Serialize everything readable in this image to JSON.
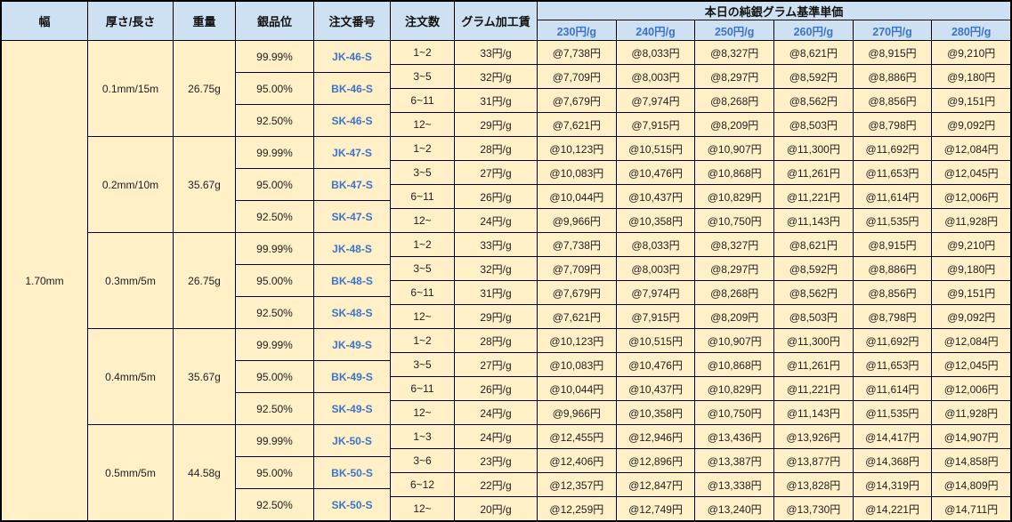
{
  "colors": {
    "header_bg": "#cee1f2",
    "body_bg": "#fff0c8",
    "grid": "#000000",
    "tick_blue": "#3c74cc",
    "code_blue": "#3c74cc"
  },
  "header": {
    "columns": [
      "幅",
      "厚さ/長さ",
      "重量",
      "銀品位",
      "注文番号",
      "注文数",
      "グラム加工賃"
    ],
    "price_group": "本日の純銀グラム基準単価",
    "price_ticks": [
      "230円/g",
      "240円/g",
      "250円/g",
      "260円/g",
      "270円/g",
      "280円/g"
    ]
  },
  "width_value": "1.70mm",
  "blocks": [
    {
      "size": "0.1mm/15m",
      "weight": "26.75g",
      "purities": [
        {
          "purity": "99.99%",
          "code": "JK-46-S"
        },
        {
          "purity": "95.00%",
          "code": "BK-46-S"
        },
        {
          "purity": "92.50%",
          "code": "SK-46-S"
        }
      ],
      "rows": [
        {
          "qty": "1~2",
          "fee": "33円/g",
          "prices": [
            "@7,738円",
            "@8,033円",
            "@8,327円",
            "@8,621円",
            "@8,915円",
            "@9,210円"
          ]
        },
        {
          "qty": "3~5",
          "fee": "32円/g",
          "prices": [
            "@7,709円",
            "@8,003円",
            "@8,297円",
            "@8,592円",
            "@8,886円",
            "@9,180円"
          ]
        },
        {
          "qty": "6~11",
          "fee": "31円/g",
          "prices": [
            "@7,679円",
            "@7,974円",
            "@8,268円",
            "@8,562円",
            "@8,856円",
            "@9,151円"
          ]
        },
        {
          "qty": "12~",
          "fee": "29円/g",
          "prices": [
            "@7,621円",
            "@7,915円",
            "@8,209円",
            "@8,503円",
            "@8,798円",
            "@9,092円"
          ]
        }
      ]
    },
    {
      "size": "0.2mm/10m",
      "weight": "35.67g",
      "purities": [
        {
          "purity": "99.99%",
          "code": "JK-47-S"
        },
        {
          "purity": "95.00%",
          "code": "BK-47-S"
        },
        {
          "purity": "92.50%",
          "code": "SK-47-S"
        }
      ],
      "rows": [
        {
          "qty": "1~2",
          "fee": "28円/g",
          "prices": [
            "@10,123円",
            "@10,515円",
            "@10,907円",
            "@11,300円",
            "@11,692円",
            "@12,084円"
          ]
        },
        {
          "qty": "3~5",
          "fee": "27円/g",
          "prices": [
            "@10,083円",
            "@10,476円",
            "@10,868円",
            "@11,261円",
            "@11,653円",
            "@12,045円"
          ]
        },
        {
          "qty": "6~11",
          "fee": "26円/g",
          "prices": [
            "@10,044円",
            "@10,437円",
            "@10,829円",
            "@11,221円",
            "@11,614円",
            "@12,006円"
          ]
        },
        {
          "qty": "12~",
          "fee": "24円/g",
          "prices": [
            "@9,966円",
            "@10,358円",
            "@10,750円",
            "@11,143円",
            "@11,535円",
            "@11,928円"
          ]
        }
      ]
    },
    {
      "size": "0.3mm/5m",
      "weight": "26.75g",
      "purities": [
        {
          "purity": "99.99%",
          "code": "JK-48-S"
        },
        {
          "purity": "95.00%",
          "code": "BK-48-S"
        },
        {
          "purity": "92.50%",
          "code": "SK-48-S"
        }
      ],
      "rows": [
        {
          "qty": "1~2",
          "fee": "33円/g",
          "prices": [
            "@7,738円",
            "@8,033円",
            "@8,327円",
            "@8,621円",
            "@8,915円",
            "@9,210円"
          ]
        },
        {
          "qty": "3~5",
          "fee": "32円/g",
          "prices": [
            "@7,709円",
            "@8,003円",
            "@8,297円",
            "@8,592円",
            "@8,886円",
            "@9,180円"
          ]
        },
        {
          "qty": "6~11",
          "fee": "31円/g",
          "prices": [
            "@7,679円",
            "@7,974円",
            "@8,268円",
            "@8,562円",
            "@8,856円",
            "@9,151円"
          ]
        },
        {
          "qty": "12~",
          "fee": "29円/g",
          "prices": [
            "@7,621円",
            "@7,915円",
            "@8,209円",
            "@8,503円",
            "@8,798円",
            "@9,092円"
          ]
        }
      ]
    },
    {
      "size": "0.4mm/5m",
      "weight": "35.67g",
      "purities": [
        {
          "purity": "99.99%",
          "code": "JK-49-S"
        },
        {
          "purity": "95.00%",
          "code": "BK-49-S"
        },
        {
          "purity": "92.50%",
          "code": "SK-49-S"
        }
      ],
      "rows": [
        {
          "qty": "1~2",
          "fee": "28円/g",
          "prices": [
            "@10,123円",
            "@10,515円",
            "@10,907円",
            "@11,300円",
            "@11,692円",
            "@12,084円"
          ]
        },
        {
          "qty": "3~5",
          "fee": "27円/g",
          "prices": [
            "@10,083円",
            "@10,476円",
            "@10,868円",
            "@11,261円",
            "@11,653円",
            "@12,045円"
          ]
        },
        {
          "qty": "6~11",
          "fee": "26円/g",
          "prices": [
            "@10,044円",
            "@10,437円",
            "@10,829円",
            "@11,221円",
            "@11,614円",
            "@12,006円"
          ]
        },
        {
          "qty": "12~",
          "fee": "24円/g",
          "prices": [
            "@9,966円",
            "@10,358円",
            "@10,750円",
            "@11,143円",
            "@11,535円",
            "@11,928円"
          ]
        }
      ]
    },
    {
      "size": "0.5mm/5m",
      "weight": "44.58g",
      "purities": [
        {
          "purity": "99.99%",
          "code": "JK-50-S"
        },
        {
          "purity": "95.00%",
          "code": "BK-50-S"
        },
        {
          "purity": "92.50%",
          "code": "SK-50-S"
        }
      ],
      "rows": [
        {
          "qty": "1~3",
          "fee": "24円/g",
          "prices": [
            "@12,455円",
            "@12,946円",
            "@13,436円",
            "@13,926円",
            "@14,417円",
            "@14,907円"
          ]
        },
        {
          "qty": "3~6",
          "fee": "23円/g",
          "prices": [
            "@12,406円",
            "@12,896円",
            "@13,387円",
            "@13,877円",
            "@14,368円",
            "@14,858円"
          ]
        },
        {
          "qty": "6~12",
          "fee": "22円/g",
          "prices": [
            "@12,357円",
            "@12,847円",
            "@13,338円",
            "@13,828円",
            "@14,319円",
            "@14,809円"
          ]
        },
        {
          "qty": "12~",
          "fee": "20円/g",
          "prices": [
            "@12,259円",
            "@12,749円",
            "@13,240円",
            "@13,730円",
            "@14,221円",
            "@14,711円"
          ]
        }
      ]
    }
  ]
}
